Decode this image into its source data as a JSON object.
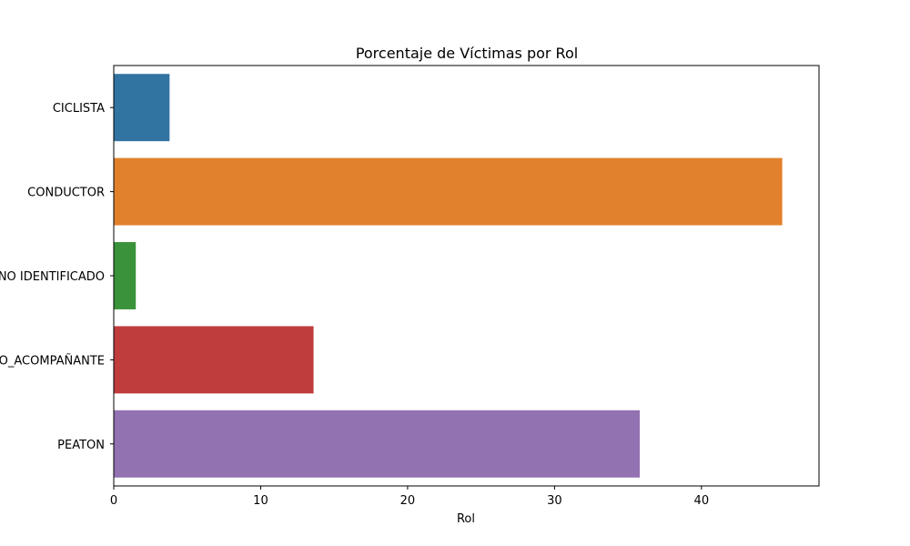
{
  "chart_data": {
    "type": "bar",
    "orientation": "horizontal",
    "title": "Porcentaje de Víctimas por Rol",
    "xlabel": "Rol",
    "ylabel": "",
    "xlim": [
      0,
      48
    ],
    "xticks": [
      "0",
      "10",
      "20",
      "30",
      "40"
    ],
    "grid": false,
    "categories": [
      "CICLISTA",
      "CONDUCTOR",
      "NO IDENTIFICADO",
      "PASAJERO_ACOMPAÑANTE",
      "PEATON"
    ],
    "values": [
      3.8,
      45.5,
      1.5,
      13.6,
      35.8
    ],
    "colors": [
      "#3274a1",
      "#e1812c",
      "#3a923a",
      "#c03d3e",
      "#9372b2"
    ]
  }
}
